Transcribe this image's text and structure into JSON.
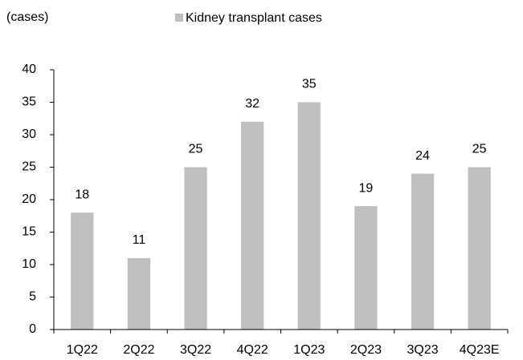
{
  "chart_data": {
    "type": "bar",
    "y_axis_label": "(cases)",
    "series": [
      {
        "name": "Kidney transplant cases",
        "color": "#bfbfbf",
        "values": [
          18,
          11,
          25,
          32,
          35,
          19,
          24,
          25
        ]
      }
    ],
    "categories": [
      "1Q22",
      "2Q22",
      "3Q22",
      "4Q22",
      "1Q23",
      "2Q23",
      "3Q23",
      "4Q23E"
    ],
    "ylim": [
      0,
      40
    ],
    "yticks": [
      0,
      5,
      10,
      15,
      20,
      25,
      30,
      35,
      40
    ],
    "grid": false,
    "legend": "top"
  }
}
